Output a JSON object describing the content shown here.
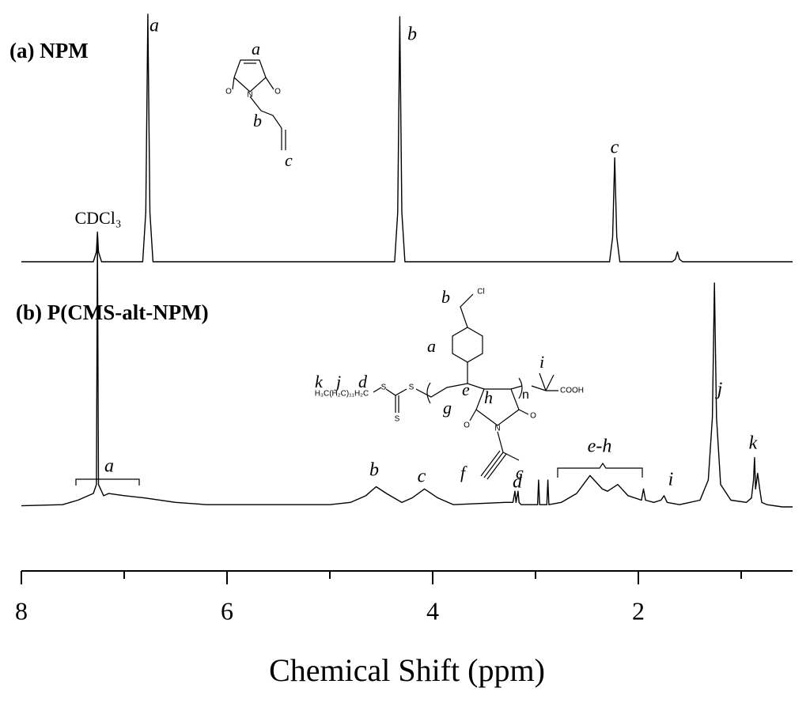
{
  "chart_data": [
    {
      "type": "line",
      "title": "(a) NPM",
      "color": "#000000",
      "xlim": [
        8,
        0.5
      ],
      "ylim": [
        0,
        100
      ],
      "x": [
        8,
        7.3,
        7.27,
        7.26,
        7.25,
        7.22,
        6.82,
        6.79,
        6.77,
        6.75,
        6.72,
        4.37,
        4.34,
        4.32,
        4.3,
        4.27,
        2.28,
        2.25,
        2.23,
        2.21,
        2.18,
        1.67,
        1.64,
        1.62,
        1.6,
        1.57,
        0.5
      ],
      "values": [
        0,
        0,
        4,
        12,
        4,
        0,
        0,
        20,
        100,
        20,
        0,
        0,
        20,
        99,
        20,
        0,
        0,
        10,
        42,
        10,
        0,
        0,
        1,
        4,
        1,
        0,
        0
      ],
      "annotations": [
        "a",
        "b",
        "c",
        "CDCl₃"
      ]
    },
    {
      "type": "line",
      "title": "(b) P(CMS-alt-NPM)",
      "color": "#000000",
      "xlim": [
        8,
        0.5
      ],
      "ylim": [
        0,
        125
      ],
      "xticks": [
        8,
        6,
        4,
        2
      ],
      "xlabel": "Chemical Shift (ppm)",
      "x": [
        8,
        7.6,
        7.45,
        7.3,
        7.27,
        7.26,
        7.25,
        7.2,
        7.15,
        7.0,
        6.8,
        6.5,
        6.2,
        5.0,
        4.8,
        4.65,
        4.55,
        4.45,
        4.3,
        4.2,
        4.08,
        3.95,
        3.8,
        3.3,
        3.22,
        3.2,
        3.19,
        3.17,
        3.16,
        3.14,
        3.05,
        2.98,
        2.97,
        2.96,
        2.89,
        2.88,
        2.87,
        2.75,
        2.6,
        2.47,
        2.35,
        2.3,
        2.2,
        2.1,
        1.97,
        1.95,
        1.93,
        1.85,
        1.78,
        1.75,
        1.72,
        1.6,
        1.4,
        1.32,
        1.28,
        1.26,
        1.24,
        1.2,
        1.1,
        0.95,
        0.9,
        0.88,
        0.87,
        0.86,
        0.84,
        0.82,
        0.8,
        0.75,
        0.6,
        0.5
      ],
      "values": [
        0.5,
        1,
        3,
        6,
        10,
        120,
        10,
        5,
        6,
        5,
        4,
        2,
        1,
        1,
        2,
        5,
        9,
        6,
        2,
        4,
        8,
        4,
        1,
        2,
        2,
        7,
        2,
        7,
        2,
        1,
        1,
        1,
        12,
        1,
        1,
        12,
        1,
        2,
        6,
        14,
        8,
        7,
        10,
        5,
        3,
        8,
        3,
        2,
        3,
        5,
        2,
        1,
        3,
        12,
        40,
        100,
        40,
        10,
        3,
        2,
        4,
        12,
        22,
        8,
        15,
        8,
        2,
        1,
        0,
        0
      ],
      "annotations": [
        "a",
        "b",
        "c",
        "d",
        "e-h",
        "i",
        "j",
        "k"
      ]
    }
  ],
  "structures": [
    {
      "atoms": [
        "O",
        "N",
        "O"
      ],
      "labels": [
        "a",
        "b",
        "c"
      ]
    },
    {
      "atoms": [
        "Cl",
        "S",
        "S",
        "S",
        "O",
        "N",
        "O",
        "COOH",
        "H₃C(H₂C)₁₁H₂C"
      ],
      "labels": [
        "b",
        "a",
        "k",
        "j",
        "d",
        "g",
        "e",
        "h",
        "n",
        "i",
        "f",
        "c"
      ]
    }
  ]
}
